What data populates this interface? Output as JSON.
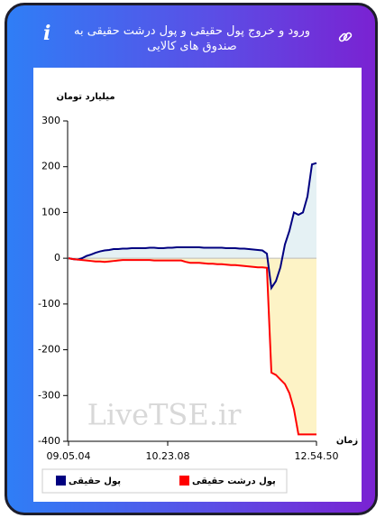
{
  "header": {
    "title": "ورود و خروج پول حقیقی و پول درشت حقیقی به صندوق های کالایی"
  },
  "chart_data": {
    "type": "line",
    "y_label": "میلیارد تومان",
    "x_label": "زمان",
    "watermark": "LiveTSE.ir",
    "categories": [
      "09.05.04",
      null,
      null,
      null,
      null,
      null,
      null,
      null,
      null,
      null,
      null,
      null,
      null,
      null,
      null,
      null,
      null,
      null,
      null,
      null,
      null,
      null,
      "10.23.08",
      null,
      null,
      null,
      null,
      null,
      null,
      null,
      null,
      null,
      null,
      null,
      null,
      null,
      null,
      null,
      null,
      null,
      null,
      null,
      null,
      null,
      null,
      null,
      null,
      null,
      null,
      null,
      null,
      null,
      null,
      null,
      null,
      "12.54.50"
    ],
    "series": [
      {
        "name": "پول حقیقی",
        "color": "#000080",
        "fill": "#e5f1f4",
        "values": [
          0,
          -2,
          -3,
          0,
          5,
          8,
          12,
          15,
          17,
          18,
          20,
          20,
          21,
          21,
          22,
          22,
          22,
          22,
          23,
          23,
          22,
          22,
          23,
          23,
          24,
          24,
          24,
          24,
          24,
          24,
          23,
          23,
          23,
          23,
          23,
          22,
          22,
          22,
          21,
          21,
          20,
          19,
          18,
          17,
          10,
          -65,
          -50,
          -20,
          30,
          60,
          100,
          95,
          100,
          135,
          205,
          208
        ]
      },
      {
        "name": "پول درشت حقیقی",
        "color": "#ff0000",
        "fill": "#fdf3c6",
        "values": [
          0,
          -2,
          -3,
          -4,
          -5,
          -6,
          -7,
          -7,
          -8,
          -7,
          -6,
          -5,
          -4,
          -4,
          -4,
          -4,
          -4,
          -4,
          -4,
          -5,
          -5,
          -5,
          -5,
          -5,
          -5,
          -5,
          -8,
          -10,
          -10,
          -10,
          -11,
          -12,
          -12,
          -13,
          -13,
          -14,
          -15,
          -15,
          -16,
          -17,
          -18,
          -19,
          -20,
          -20,
          -21,
          -250,
          -255,
          -265,
          -275,
          -295,
          -330,
          -385,
          -385,
          -385,
          -385,
          -385
        ]
      }
    ],
    "ylim": [
      -400,
      300
    ],
    "yticks": [
      -400,
      -300,
      -200,
      -100,
      0,
      100,
      200,
      300
    ]
  }
}
